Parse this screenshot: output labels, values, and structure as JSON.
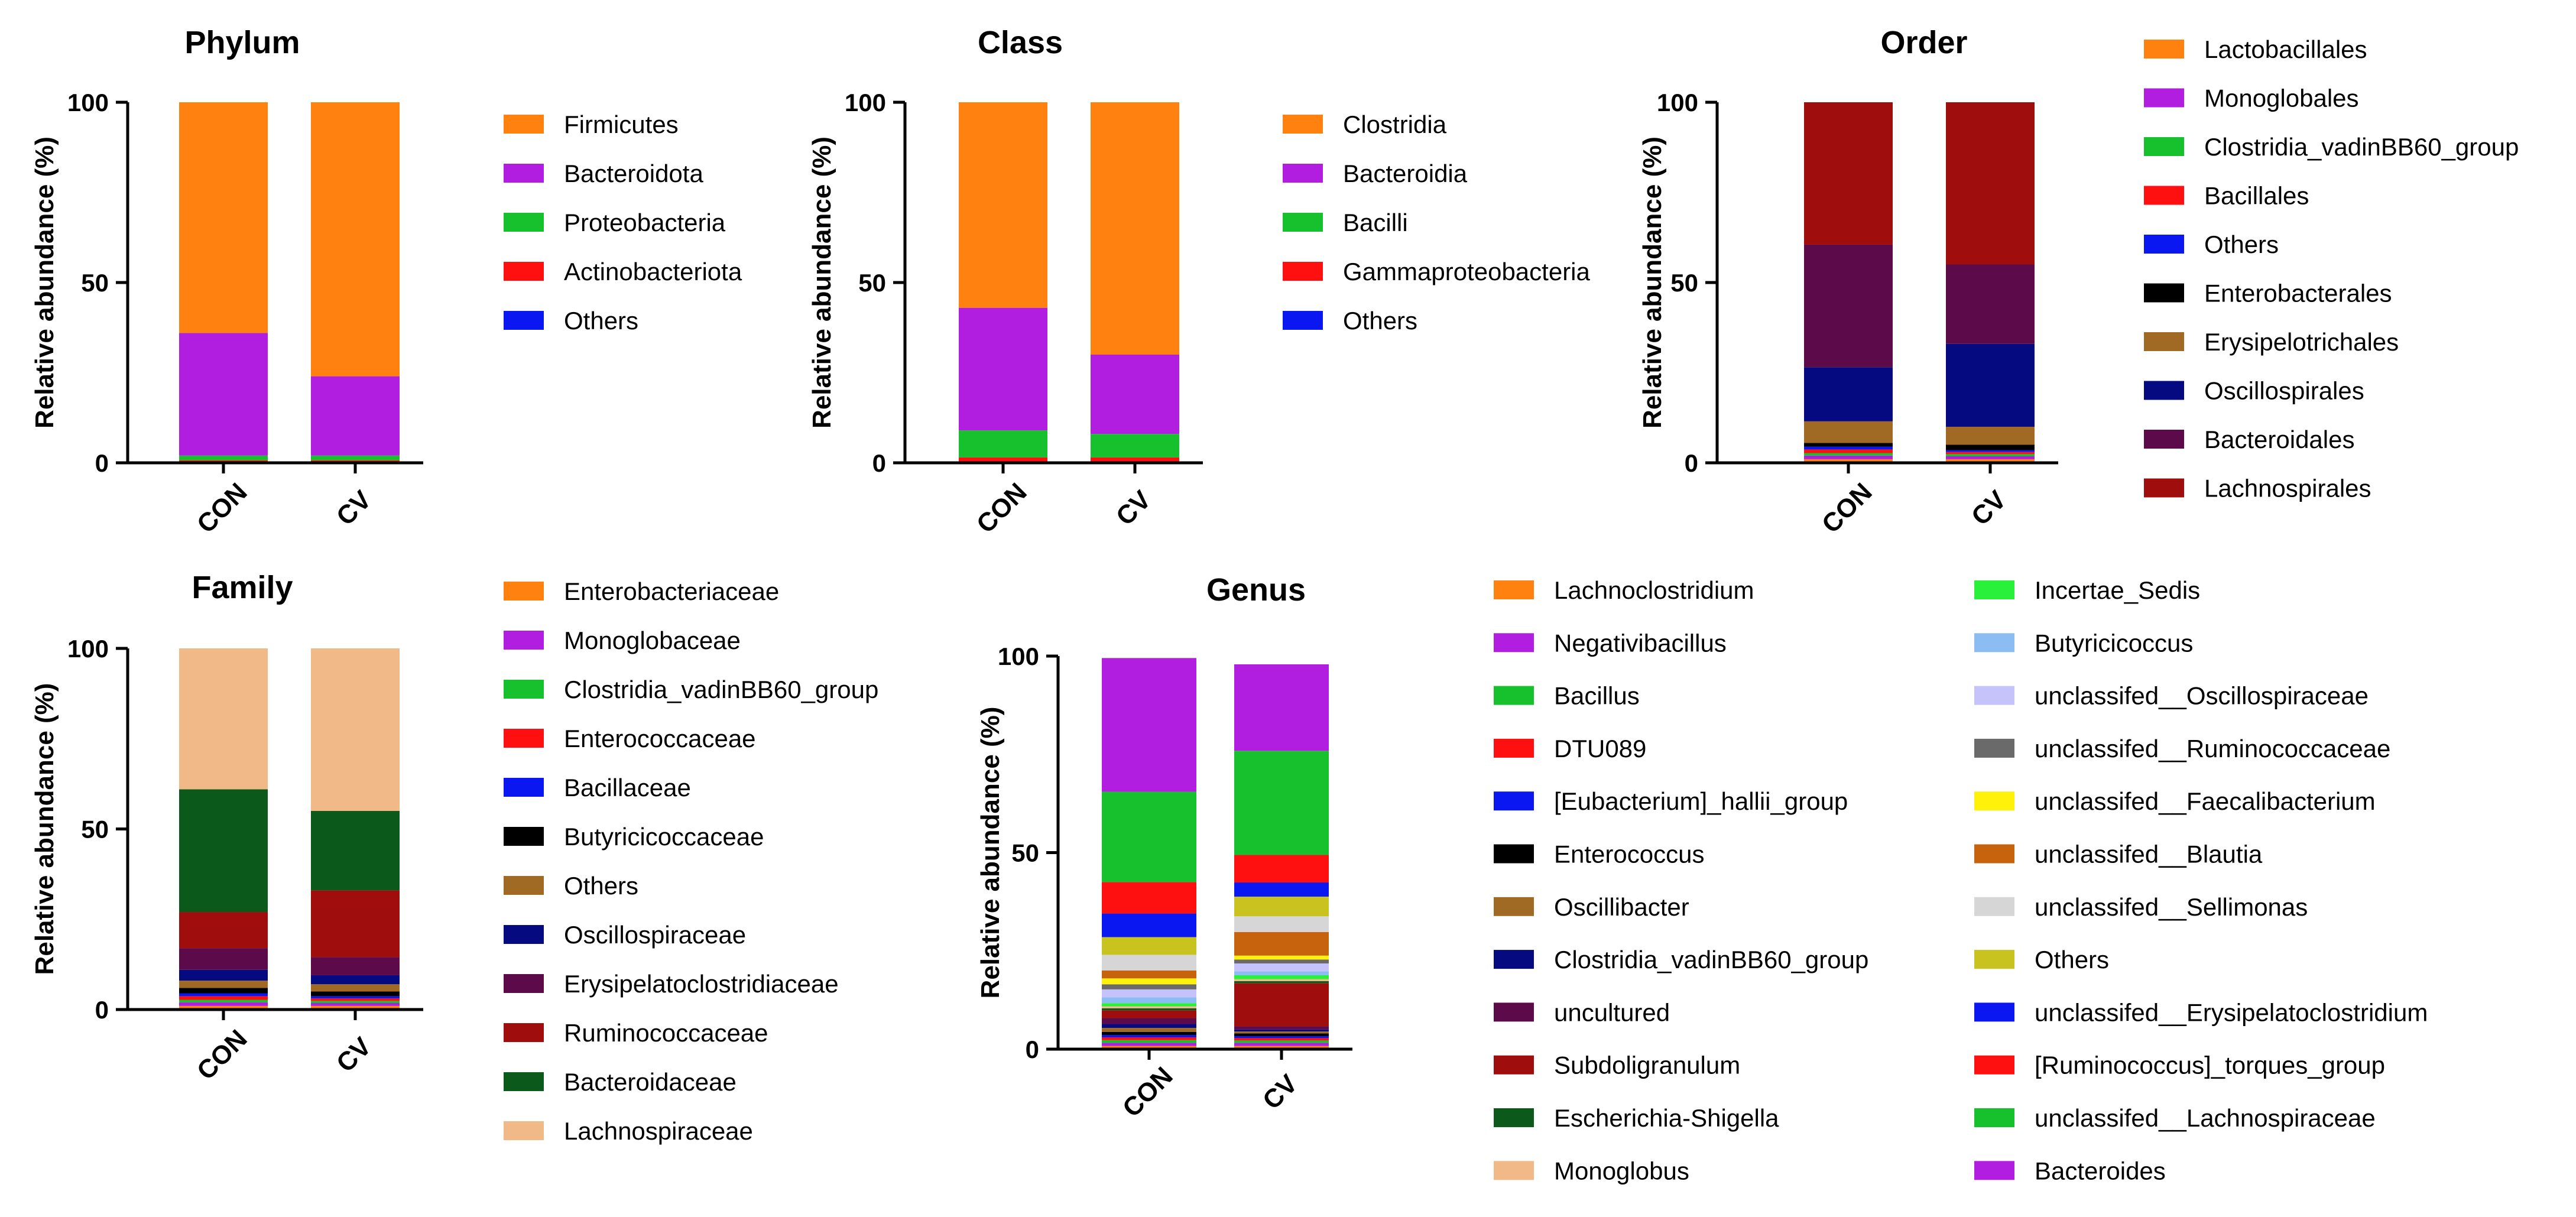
{
  "chart_data": [
    {
      "type": "bar",
      "stacked": true,
      "title": "Phylum",
      "xlabel": "",
      "ylabel": "Relative abundance (%)",
      "ylim": [
        0,
        100
      ],
      "yticks": [
        "0",
        "50",
        "100"
      ],
      "categories": [
        "CON",
        "CV"
      ],
      "series": [
        {
          "name": "Others",
          "color": "#0a17f0",
          "values": [
            0.2,
            0.2
          ]
        },
        {
          "name": "Actinobacteriota",
          "color": "#ff1010",
          "values": [
            0.5,
            0.5
          ]
        },
        {
          "name": "Proteobacteria",
          "color": "#17c02d",
          "values": [
            1.3,
            1.3
          ]
        },
        {
          "name": "Bacteroidota",
          "color": "#b11ee0",
          "values": [
            34,
            22
          ]
        },
        {
          "name": "Firmicutes",
          "color": "#ff8211",
          "values": [
            64,
            76
          ]
        }
      ]
    },
    {
      "type": "bar",
      "stacked": true,
      "title": "Class",
      "xlabel": "",
      "ylabel": "Relative abundance (%)",
      "ylim": [
        0,
        100
      ],
      "yticks": [
        "0",
        "50",
        "100"
      ],
      "categories": [
        "CON",
        "CV"
      ],
      "series": [
        {
          "name": "Others",
          "color": "#0a17f0",
          "values": [
            0.3,
            0.3
          ]
        },
        {
          "name": "Gammaproteobacteria",
          "color": "#ff1010",
          "values": [
            1.2,
            1.2
          ]
        },
        {
          "name": "Bacilli",
          "color": "#17c02d",
          "values": [
            7.5,
            6.5
          ]
        },
        {
          "name": "Bacteroidia",
          "color": "#b11ee0",
          "values": [
            34,
            22
          ]
        },
        {
          "name": "Clostridia",
          "color": "#ff8211",
          "values": [
            57,
            70
          ]
        }
      ]
    },
    {
      "type": "bar",
      "stacked": true,
      "title": "Order",
      "xlabel": "",
      "ylabel": "Relative abundance (%)",
      "ylim": [
        0,
        100
      ],
      "yticks": [
        "0",
        "50",
        "100"
      ],
      "categories": [
        "CON",
        "CV"
      ],
      "series": [
        {
          "name": "Lactobacillales",
          "color": "#ff8211",
          "values": [
            1,
            1
          ]
        },
        {
          "name": "Monoglobales",
          "color": "#b11ee0",
          "values": [
            1,
            0.8
          ]
        },
        {
          "name": "Clostridia_vadinBB60_group",
          "color": "#17c02d",
          "values": [
            0.7,
            0.6
          ]
        },
        {
          "name": "Bacillales",
          "color": "#ff1010",
          "values": [
            1,
            0.6
          ]
        },
        {
          "name": "Others",
          "color": "#0a17f0",
          "values": [
            0.8,
            0.5
          ]
        },
        {
          "name": "Enterobacterales",
          "color": "#000000",
          "values": [
            1,
            1.5
          ]
        },
        {
          "name": "Erysipelotrichales",
          "color": "#a06a24",
          "values": [
            6,
            5
          ]
        },
        {
          "name": "Oscillospirales",
          "color": "#050a80",
          "values": [
            15,
            23
          ]
        },
        {
          "name": "Bacteroidales",
          "color": "#5c0a4a",
          "values": [
            34,
            22
          ]
        },
        {
          "name": "Lachnospirales",
          "color": "#a00d0d",
          "values": [
            39.5,
            45
          ]
        }
      ]
    },
    {
      "type": "bar",
      "stacked": true,
      "title": "Family",
      "xlabel": "",
      "ylabel": "Relative abundance (%)",
      "ylim": [
        0,
        100
      ],
      "yticks": [
        "0",
        "50",
        "100"
      ],
      "categories": [
        "CON",
        "CV"
      ],
      "series": [
        {
          "name": "Enterobacteriaceae",
          "color": "#ff8211",
          "values": [
            1,
            1
          ]
        },
        {
          "name": "Monoglobaceae",
          "color": "#b11ee0",
          "values": [
            1,
            0.8
          ]
        },
        {
          "name": "Clostridia_vadinBB60_group",
          "color": "#17c02d",
          "values": [
            0.7,
            0.6
          ]
        },
        {
          "name": "Enterococcaceae",
          "color": "#ff1010",
          "values": [
            1,
            0.7
          ]
        },
        {
          "name": "Bacillaceae",
          "color": "#0a17f0",
          "values": [
            0.8,
            0.6
          ]
        },
        {
          "name": "Butyricicoccaceae",
          "color": "#000000",
          "values": [
            1.5,
            1.3
          ]
        },
        {
          "name": "Others",
          "color": "#a06a24",
          "values": [
            2,
            2
          ]
        },
        {
          "name": "Oscillospiraceae",
          "color": "#050a80",
          "values": [
            3,
            2.5
          ]
        },
        {
          "name": "Erysipelatoclostridiaceae",
          "color": "#5c0a4a",
          "values": [
            6,
            5
          ]
        },
        {
          "name": "Ruminococcaceae",
          "color": "#a00d0d",
          "values": [
            10,
            18.5
          ]
        },
        {
          "name": "Bacteroidaceae",
          "color": "#0b5a1c",
          "values": [
            34,
            22
          ]
        },
        {
          "name": "Lachnospiraceae",
          "color": "#f0b987",
          "values": [
            39,
            45
          ]
        }
      ]
    },
    {
      "type": "bar",
      "stacked": true,
      "title": "Genus",
      "xlabel": "",
      "ylabel": "Relative abundance (%)",
      "ylim": [
        0,
        100
      ],
      "yticks": [
        "0",
        "50",
        "100"
      ],
      "categories": [
        "CON",
        "CV"
      ],
      "series": [
        {
          "name": "Lachnoclostridium",
          "color": "#ff8211",
          "values": [
            0.8,
            0.8
          ]
        },
        {
          "name": "Negativibacillus",
          "color": "#b11ee0",
          "values": [
            0.8,
            0.8
          ]
        },
        {
          "name": "Bacillus",
          "color": "#17c02d",
          "values": [
            0.7,
            0.6
          ]
        },
        {
          "name": "DTU089",
          "color": "#ff1010",
          "values": [
            0.7,
            0.6
          ]
        },
        {
          "name": "[Eubacterium]_hallii_group",
          "color": "#0a17f0",
          "values": [
            0.6,
            0.5
          ]
        },
        {
          "name": "Enterococcus",
          "color": "#000000",
          "values": [
            0.8,
            0.7
          ]
        },
        {
          "name": "Oscillibacter",
          "color": "#a06a24",
          "values": [
            1,
            0.5
          ]
        },
        {
          "name": "Clostridia_vadinBB60_group",
          "color": "#050a80",
          "values": [
            1,
            0.5
          ]
        },
        {
          "name": "uncultured",
          "color": "#5c0a4a",
          "values": [
            1.5,
            0.8
          ]
        },
        {
          "name": "Subdoligranulum",
          "color": "#a00d0d",
          "values": [
            2,
            11
          ]
        },
        {
          "name": "Escherichia-Shigella",
          "color": "#0b5a1c",
          "values": [
            0.5,
            0.5
          ]
        },
        {
          "name": "Monoglobus",
          "color": "#f0b987",
          "values": [
            0.5,
            0.5
          ]
        },
        {
          "name": "Incertae_Sedis",
          "color": "#29f03a",
          "values": [
            0.8,
            1
          ]
        },
        {
          "name": "Butyricicoccus",
          "color": "#8cbdf2",
          "values": [
            1.5,
            1
          ]
        },
        {
          "name": "unclassifed__Oscillospiraceae",
          "color": "#c6c3fa",
          "values": [
            2,
            2
          ]
        },
        {
          "name": "unclassifed__Ruminococcaceae",
          "color": "#6a6a6a",
          "values": [
            1.3,
            1
          ]
        },
        {
          "name": "unclassifed__Faecalibacterium",
          "color": "#fff10a",
          "values": [
            1.5,
            1
          ]
        },
        {
          "name": "unclassifed__Blautia",
          "color": "#c8630d",
          "values": [
            2,
            6
          ]
        },
        {
          "name": "unclassifed__Sellimonas",
          "color": "#d6d6d6",
          "values": [
            4,
            4
          ]
        },
        {
          "name": "Others",
          "color": "#c9c320",
          "values": [
            4.5,
            5
          ]
        },
        {
          "name": "unclassifed__Erysipelatoclostridium",
          "color": "#0a17f0",
          "values": [
            6,
            3.6
          ]
        },
        {
          "name": "[Ruminococcus]_torques_group",
          "color": "#ff1010",
          "values": [
            8,
            7
          ]
        },
        {
          "name": "unclassifed__Lachnospiraceae",
          "color": "#17c02d",
          "values": [
            23,
            26.5
          ]
        },
        {
          "name": "Bacteroides",
          "color": "#b11ee0",
          "values": [
            34,
            22
          ]
        }
      ]
    }
  ]
}
